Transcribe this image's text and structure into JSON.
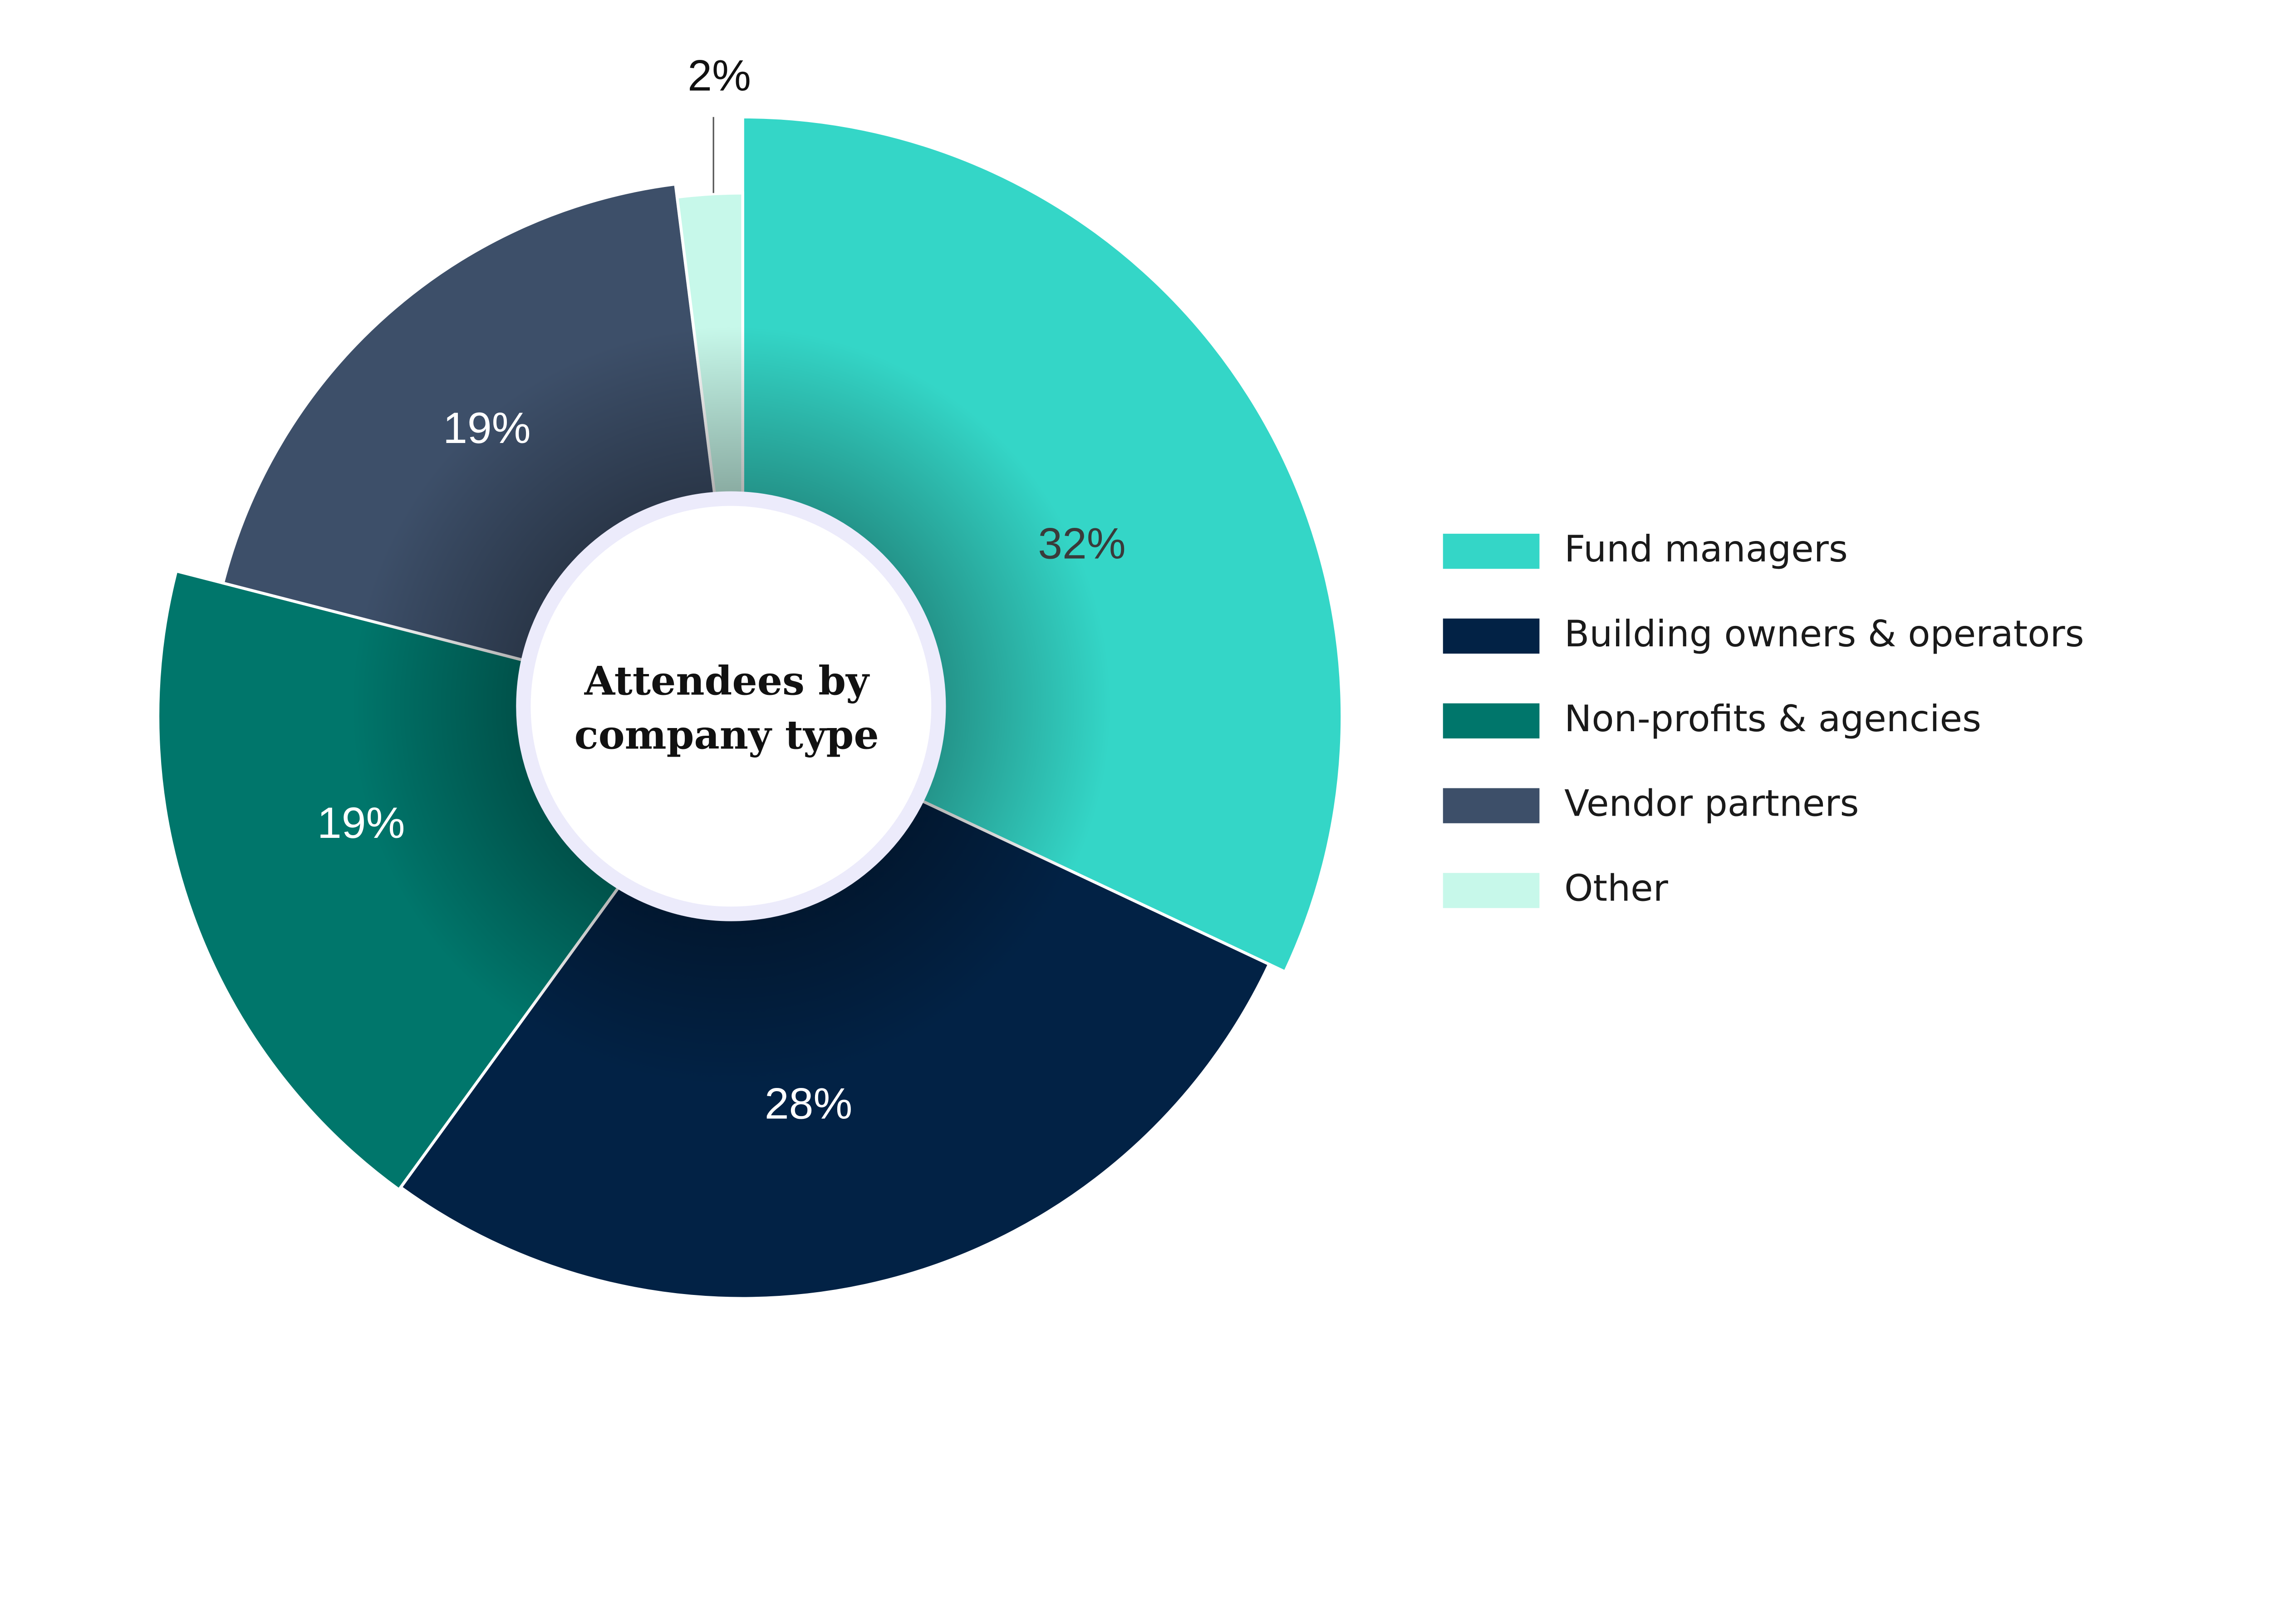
{
  "chart_data": {
    "type": "pie",
    "variant": "variable-radius donut",
    "title": "Attendees by company type",
    "categories": [
      "Fund managers",
      "Building owners & operators",
      "Non-profits & agencies",
      "Vendor partners",
      "Other"
    ],
    "values": [
      32,
      28,
      19,
      19,
      2
    ],
    "data_labels": [
      "32%",
      "28%",
      "19%",
      "19%",
      "2%"
    ],
    "colors": [
      "#34d6c7",
      "#022245",
      "#00766b",
      "#3d4f69",
      "#c7f8ea"
    ],
    "label_colors": [
      "#3a3a3a",
      "#ffffff",
      "#ffffff",
      "#ffffff",
      "#111111"
    ],
    "legend_position": "right"
  }
}
